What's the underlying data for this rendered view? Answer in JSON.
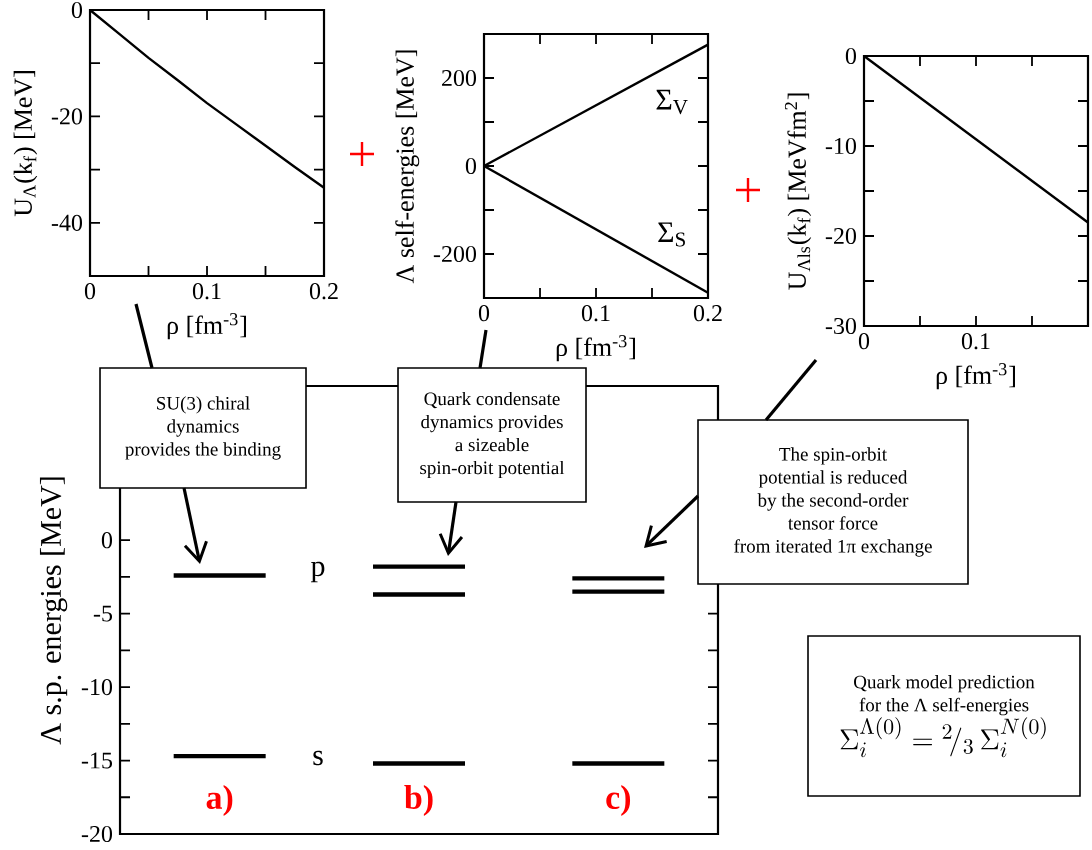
{
  "chart_data": [
    {
      "type": "line",
      "xlabel": "ρ [fm$^{-3}$]",
      "ylabel": "U$_{Λ}$(k$_{f}$) [MeV]",
      "x": [
        0,
        0.025,
        0.05,
        0.075,
        0.1,
        0.125,
        0.15,
        0.175,
        0.2
      ],
      "series": [
        {
          "color": "#000000",
          "values": [
            0,
            -4.5,
            -9,
            -13.2,
            -17.5,
            -21.5,
            -25.5,
            -29.5,
            -33.4
          ]
        }
      ],
      "xlim": [
        0,
        0.2
      ],
      "ylim": [
        -50,
        0
      ],
      "xticks": [
        0,
        {
          "value": 0.05,
          "label": null
        },
        0.1,
        {
          "value": 0.15,
          "label": null
        },
        0.2
      ],
      "yticks": [
        {
          "value": -50,
          "label": null
        },
        -40,
        {
          "value": -30,
          "label": null
        },
        -20,
        {
          "value": -10,
          "label": null
        },
        0
      ]
    },
    {
      "type": "line",
      "xlabel": "ρ [fm$^{-3}$]",
      "ylabel": "Λ self-energies [MeV]",
      "x": [
        0,
        0.2
      ],
      "series": [
        {
          "name": "Σ$_{V}$",
          "color": "#000000",
          "values": [
            0,
            276
          ]
        },
        {
          "name": "Σ$_{S}$",
          "color": "#000000",
          "values": [
            0,
            -288
          ]
        }
      ],
      "legend": "right",
      "xlim": [
        0,
        0.2
      ],
      "ylim": [
        -300,
        300
      ],
      "xticks": [
        0,
        {
          "value": 0.05,
          "label": null
        },
        0.1,
        {
          "value": 0.15,
          "label": null
        },
        0.2
      ],
      "yticks": [
        -200,
        {
          "value": -100,
          "label": null
        },
        0,
        {
          "value": 100,
          "label": null
        },
        200
      ]
    },
    {
      "type": "line",
      "xlabel": "ρ [fm$^{-3}$]",
      "ylabel": "U$_{Λls}$(k$_{f}$) [MeVfm$^{2}$]",
      "x": [
        0,
        0.2
      ],
      "series": [
        {
          "color": "#000000",
          "values": [
            0,
            -18.5
          ]
        }
      ],
      "xlim": [
        0,
        0.2
      ],
      "ylim": [
        -30,
        0
      ],
      "xticks": [
        0,
        {
          "value": 0.05,
          "label": null
        },
        0.1,
        {
          "value": 0.15,
          "label": null
        },
        {
          "value": 0.2,
          "label": null
        }
      ],
      "yticks": [
        -30,
        {
          "value": -25,
          "label": null
        },
        -20,
        {
          "value": -15,
          "label": null
        },
        -10,
        {
          "value": -5,
          "label": null
        },
        0
      ]
    },
    {
      "type": "bar",
      "ylabel": "Λ s.p. energies [MeV]",
      "categories": [
        "a)",
        "b)",
        "c)"
      ],
      "ylim": [
        -20,
        10.5
      ],
      "yticks": [
        -20,
        {
          "value": -17.5,
          "label": null
        },
        -15,
        {
          "value": -12.5,
          "label": null
        },
        -10,
        {
          "value": -7.5,
          "label": null
        },
        -5,
        {
          "value": -2.5,
          "label": null
        },
        0
      ],
      "series": [
        {
          "color": "#000000",
          "base": [
            -2.4,
            -1.8,
            -2.6
          ],
          "values": [
            0,
            0,
            0
          ]
        },
        {
          "color": "#000000",
          "base": [
            null,
            -3.7,
            -3.5
          ],
          "values": [
            null,
            0,
            0
          ]
        },
        {
          "color": "#000000",
          "base": [
            -14.7,
            -15.2,
            -15.2
          ],
          "values": [
            0,
            0,
            0
          ]
        }
      ],
      "annotations": [
        "p",
        "s",
        "SU(3) chiral",
        "dynamics",
        "provides the binding",
        "Quark condensate",
        "dynamics provides",
        "a sizeable",
        "spin-orbit potential",
        "The spin-orbit",
        "potential is reduced",
        "by the second-order",
        "tensor force",
        "from iterated 1π exchange",
        "Quark model prediction",
        "for the Λ self-energies",
        "\\Sigma_{i}^{\\Lambda(0)}={}^{2}\\!/_{3}\\,\\Sigma_{i}^{N(0)}"
      ]
    }
  ]
}
